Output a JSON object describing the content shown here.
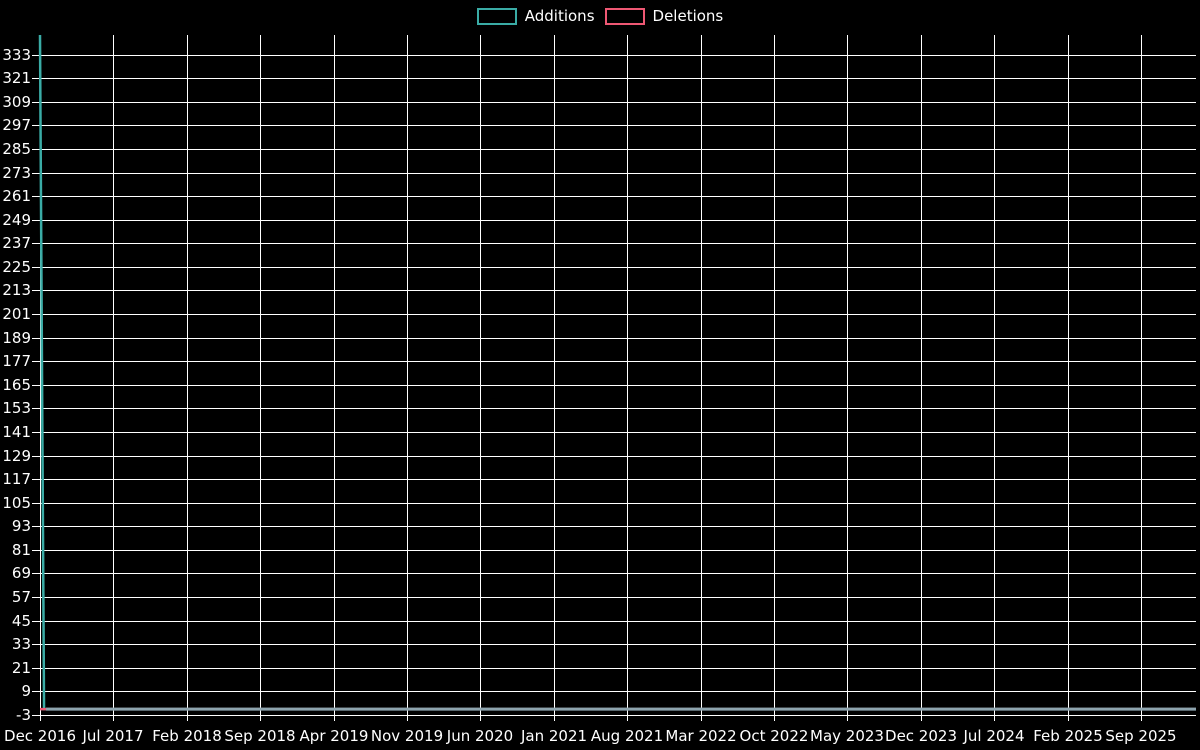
{
  "legend": {
    "items": [
      {
        "label": "Additions",
        "color": "#3aaca6"
      },
      {
        "label": "Deletions",
        "color": "#ef5874"
      }
    ]
  },
  "chart_data": {
    "type": "line",
    "title": "",
    "xlabel": "",
    "ylabel": "",
    "grid": true,
    "legend_position": "top-center",
    "x_tick_labels": [
      "Dec 2016",
      "Jul 2017",
      "Feb 2018",
      "Sep 2018",
      "Apr 2019",
      "Nov 2019",
      "Jun 2020",
      "Jan 2021",
      "Aug 2021",
      "Mar 2022",
      "Oct 2022",
      "May 2023",
      "Dec 2023",
      "Jul 2024",
      "Feb 2025",
      "Sep 2025"
    ],
    "y_tick_labels": [
      -3,
      9,
      21,
      33,
      45,
      57,
      69,
      81,
      93,
      105,
      117,
      129,
      141,
      153,
      165,
      177,
      189,
      201,
      213,
      225,
      237,
      249,
      261,
      273,
      285,
      297,
      309,
      321,
      333
    ],
    "ylim": [
      -3,
      343
    ],
    "colors": {
      "background": "#000000",
      "grid": "#ffffff",
      "axis_text": "#ffffff",
      "additions": "#3aaca6",
      "deletions": "#ef5874",
      "overlap_line": "#8da4ae"
    },
    "series": [
      {
        "name": "Additions",
        "color": "#3aaca6",
        "points": [
          {
            "x": 0,
            "y": 343
          },
          {
            "x": 0.0035,
            "y": 0
          },
          {
            "x": 1,
            "y": 0
          }
        ]
      },
      {
        "name": "Deletions",
        "color": "#ef5874",
        "points": [
          {
            "x": 0,
            "y": 0
          },
          {
            "x": 1,
            "y": 0
          }
        ]
      }
    ]
  }
}
